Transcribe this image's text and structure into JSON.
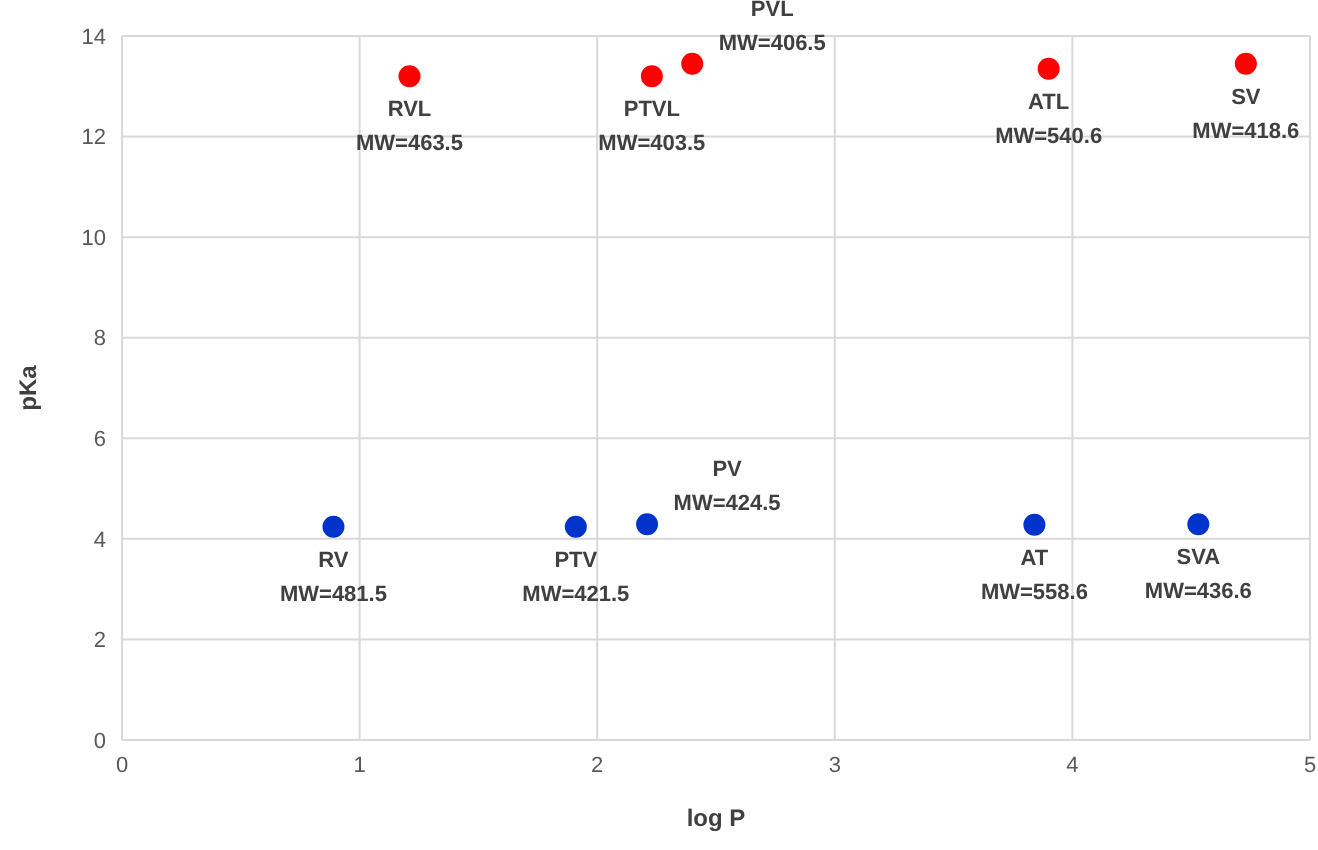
{
  "chart_data": {
    "type": "scatter",
    "xlabel": "log P",
    "ylabel": "pKa",
    "xlim": [
      0,
      5
    ],
    "ylim": [
      0,
      14
    ],
    "xticks": [
      0,
      1,
      2,
      3,
      4,
      5
    ],
    "yticks": [
      0,
      2,
      4,
      6,
      8,
      10,
      12,
      14
    ],
    "grid": true,
    "marker": "circle",
    "series": [
      {
        "color": "#ff0000",
        "x": [
          1.21,
          2.23,
          2.4,
          3.9,
          4.73
        ],
        "values": [
          13.2,
          13.2,
          13.45,
          13.35,
          13.45
        ]
      },
      {
        "color": "#0033cc",
        "x": [
          0.89,
          1.91,
          2.21,
          3.84,
          4.53
        ],
        "values": [
          4.24,
          4.24,
          4.29,
          4.28,
          4.29
        ]
      }
    ],
    "annotations": [
      {
        "text": "RVL\nMW=463.5",
        "x": 1.21,
        "y": 13.2
      },
      {
        "text": "PTVL\nMW=403.5",
        "x": 2.23,
        "y": 13.2
      },
      {
        "text": "PVL\nMW=406.5",
        "x": 2.4,
        "y": 13.45
      },
      {
        "text": "ATL\nMW=540.6",
        "x": 3.9,
        "y": 13.35
      },
      {
        "text": "SV\nMW=418.6",
        "x": 4.73,
        "y": 13.45
      },
      {
        "text": "RV\nMW=481.5",
        "x": 0.89,
        "y": 4.24
      },
      {
        "text": "PTV\nMW=421.5",
        "x": 1.91,
        "y": 4.24
      },
      {
        "text": "PV\nMW=424.5",
        "x": 2.21,
        "y": 4.29
      },
      {
        "text": "AT\nMW=558.6",
        "x": 3.84,
        "y": 4.28
      },
      {
        "text": "SVA\nMW=436.6",
        "x": 4.53,
        "y": 4.29
      }
    ]
  }
}
